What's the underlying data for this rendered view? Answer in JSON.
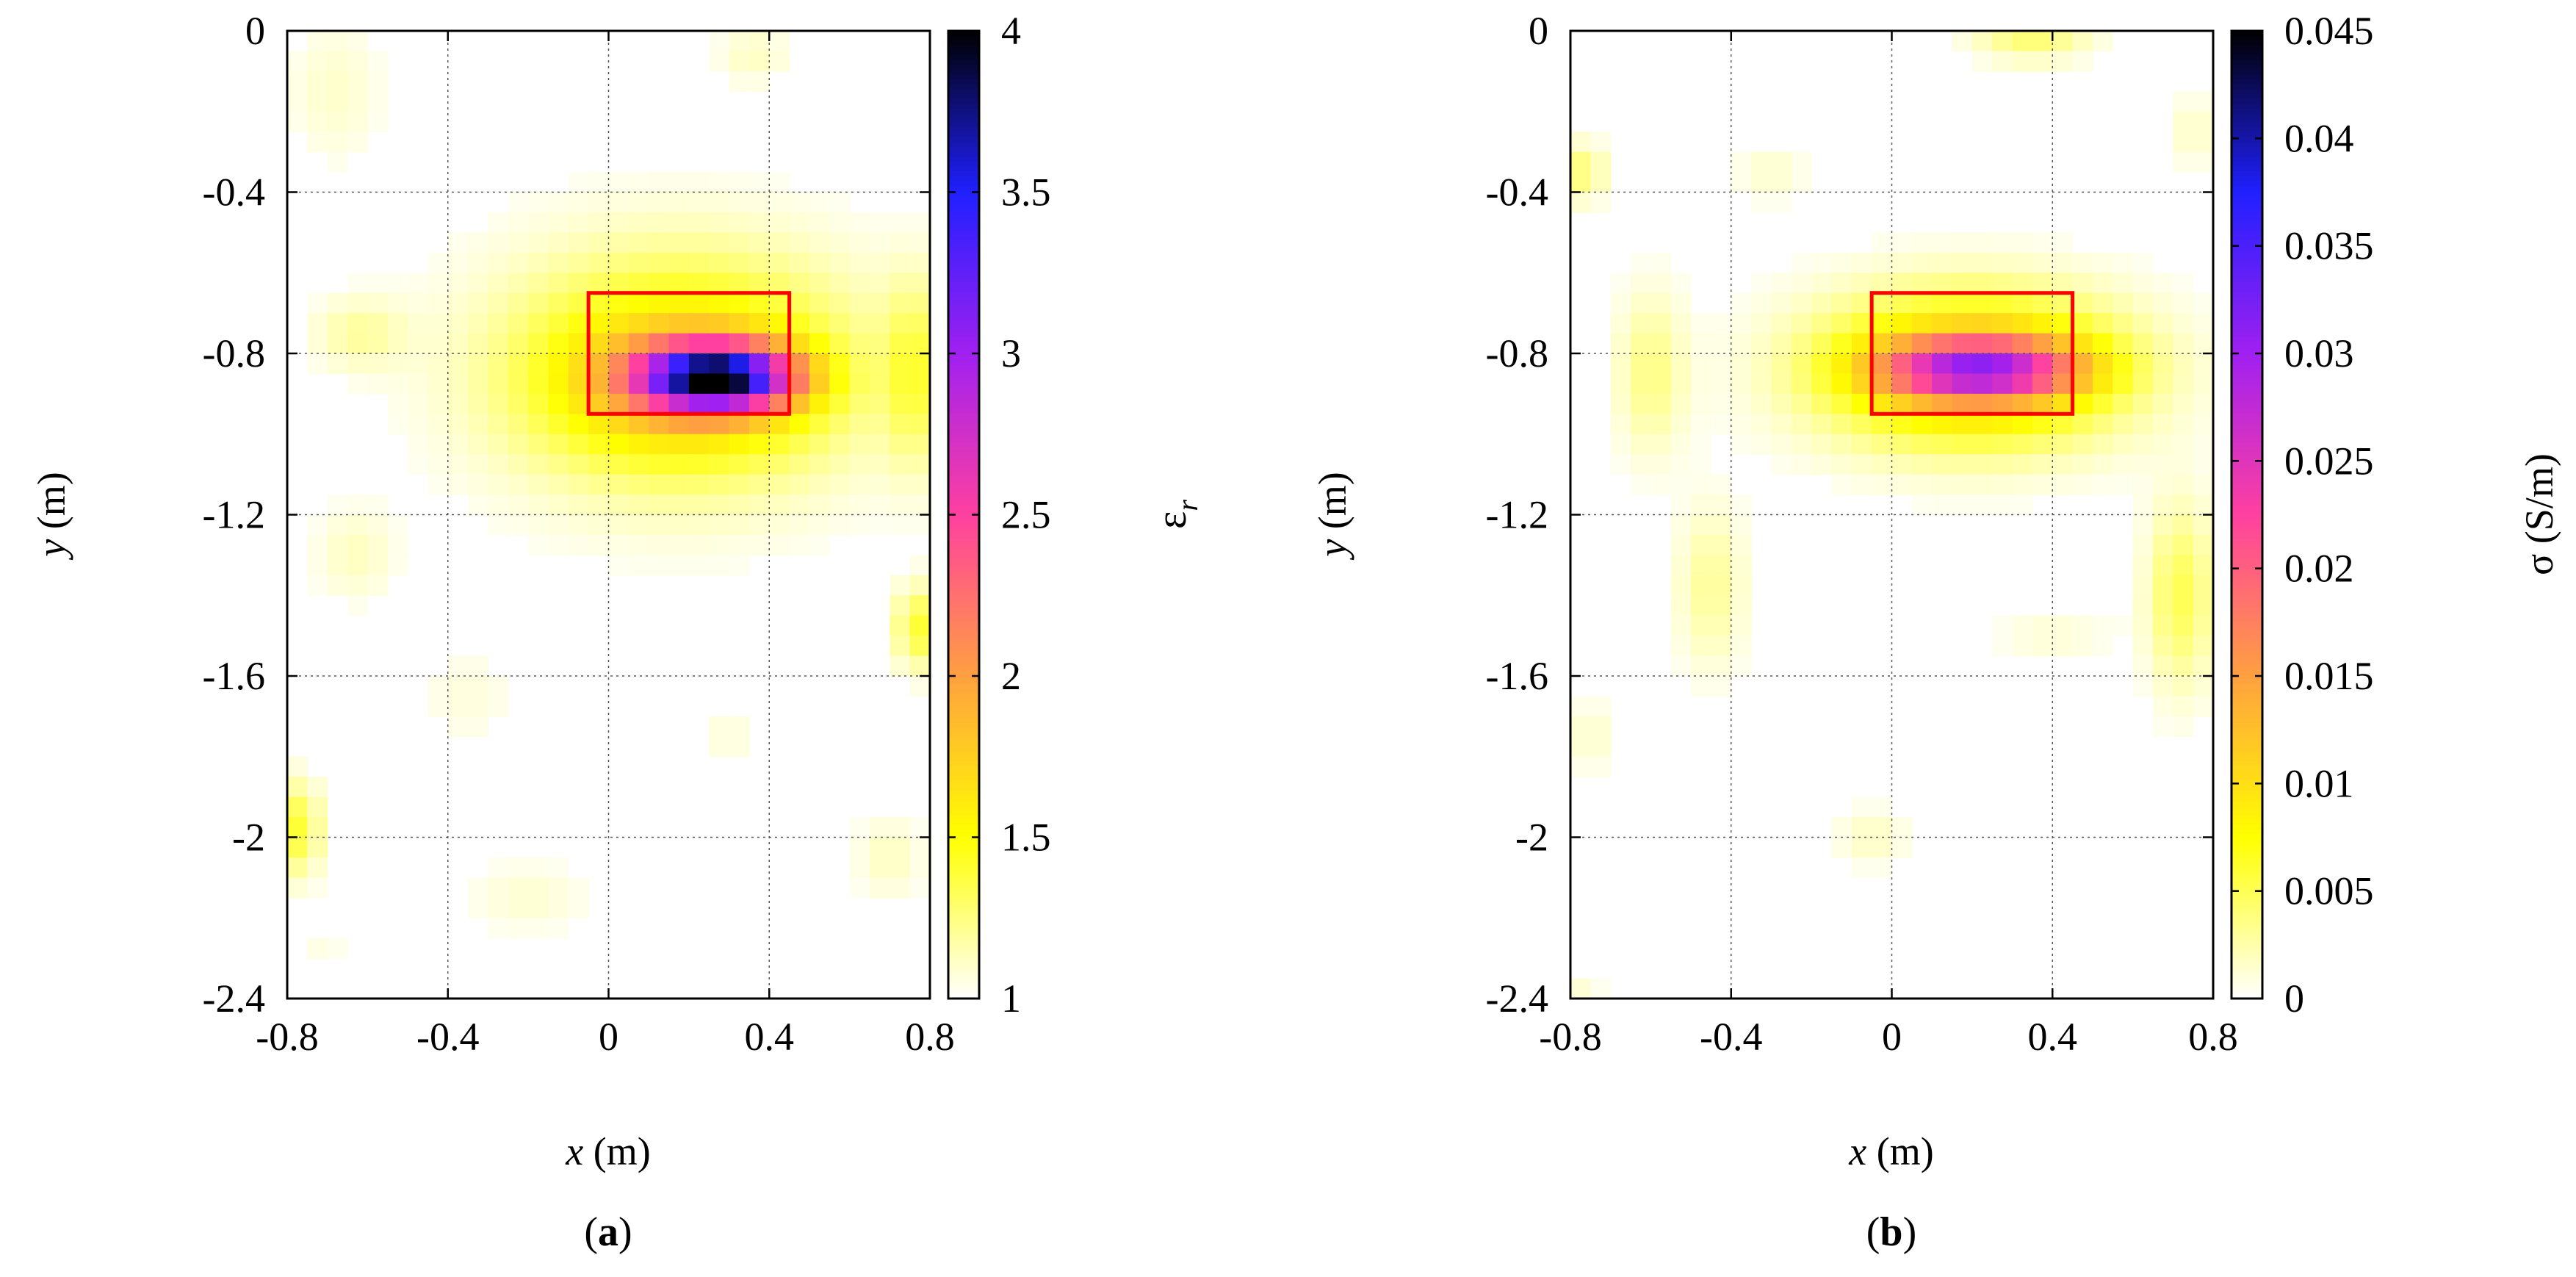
{
  "chart_data": [
    {
      "type": "heatmap",
      "panel_label": "a",
      "xlabel_var": "x",
      "xlabel_unit": " (m)",
      "ylabel_var": "y",
      "ylabel_unit": " (m)",
      "xlim": [
        -0.8,
        0.8
      ],
      "ylim": [
        -2.4,
        0
      ],
      "xticks": [
        -0.8,
        -0.4,
        0,
        0.4,
        0.8
      ],
      "xtick_labels": [
        "-0.8",
        "-0.4",
        "0",
        "0.4",
        "0.8"
      ],
      "yticks": [
        0,
        -0.4,
        -0.8,
        -1.2,
        -1.6,
        -2,
        -2.4
      ],
      "ytick_labels": [
        "0",
        "-0.4",
        "-0.8",
        "-1.2",
        "-1.6",
        "-2",
        "-2.4"
      ],
      "grid": true,
      "colorbar": {
        "range": [
          1,
          4
        ],
        "ticks": [
          1,
          1.5,
          2,
          2.5,
          3,
          3.5,
          4
        ],
        "tick_labels": [
          "1",
          "1.5",
          "2",
          "2.5",
          "3",
          "3.5",
          "4"
        ],
        "label_main": "ε",
        "label_sub": "r"
      },
      "colormap": [
        "#ffffff",
        "#ffff00",
        "#ffa040",
        "#ff40a0",
        "#a020f0",
        "#2020ff",
        "#000000"
      ],
      "target_box": {
        "x": [
          -0.05,
          0.45
        ],
        "y": [
          -0.95,
          -0.65
        ],
        "color": "#ff0000"
      },
      "blobs": [
        {
          "x": 0.27,
          "y": -0.86,
          "sx": 0.13,
          "sy": 0.055,
          "v": 2.3
        },
        {
          "x": 0.18,
          "y": -0.84,
          "sx": 0.3,
          "sy": 0.2,
          "v": 0.65
        },
        {
          "x": 0.18,
          "y": -0.88,
          "sx": 0.22,
          "sy": 0.12,
          "v": 0.35
        },
        {
          "x": -0.62,
          "y": -0.75,
          "sx": 0.08,
          "sy": 0.06,
          "v": 0.18
        },
        {
          "x": -0.68,
          "y": -0.15,
          "sx": 0.08,
          "sy": 0.12,
          "v": 0.1
        },
        {
          "x": 0.36,
          "y": -0.06,
          "sx": 0.06,
          "sy": 0.05,
          "v": 0.12
        },
        {
          "x": 0.76,
          "y": -0.85,
          "sx": 0.05,
          "sy": 0.16,
          "v": 0.32
        },
        {
          "x": 0.77,
          "y": -1.48,
          "sx": 0.04,
          "sy": 0.07,
          "v": 0.4
        },
        {
          "x": -0.78,
          "y": -1.98,
          "sx": 0.045,
          "sy": 0.08,
          "v": 0.4
        },
        {
          "x": -0.63,
          "y": -1.3,
          "sx": 0.07,
          "sy": 0.08,
          "v": 0.12
        },
        {
          "x": -0.35,
          "y": -1.65,
          "sx": 0.08,
          "sy": 0.08,
          "v": 0.07
        },
        {
          "x": -0.2,
          "y": -2.15,
          "sx": 0.1,
          "sy": 0.06,
          "v": 0.09
        },
        {
          "x": 0.3,
          "y": -1.75,
          "sx": 0.06,
          "sy": 0.05,
          "v": 0.07
        },
        {
          "x": 0.7,
          "y": -2.05,
          "sx": 0.06,
          "sy": 0.07,
          "v": 0.12
        },
        {
          "x": -0.72,
          "y": -2.28,
          "sx": 0.05,
          "sy": 0.04,
          "v": 0.05
        }
      ]
    },
    {
      "type": "heatmap",
      "panel_label": "b",
      "xlabel_var": "x",
      "xlabel_unit": " (m)",
      "ylabel_var": "y",
      "ylabel_unit": " (m)",
      "xlim": [
        -0.8,
        0.8
      ],
      "ylim": [
        -2.4,
        0
      ],
      "xticks": [
        -0.8,
        -0.4,
        0,
        0.4,
        0.8
      ],
      "xtick_labels": [
        "-0.8",
        "-0.4",
        "0",
        "0.4",
        "0.8"
      ],
      "yticks": [
        0,
        -0.4,
        -0.8,
        -1.2,
        -1.6,
        -2,
        -2.4
      ],
      "ytick_labels": [
        "0",
        "-0.4",
        "-0.8",
        "-1.2",
        "-1.6",
        "-2",
        "-2.4"
      ],
      "grid": true,
      "colorbar": {
        "range": [
          0,
          0.045
        ],
        "ticks": [
          0,
          0.005,
          0.01,
          0.015,
          0.02,
          0.025,
          0.03,
          0.035,
          0.04,
          0.045
        ],
        "tick_labels": [
          "0",
          "0.005",
          "0.01",
          "0.015",
          "0.02",
          "0.025",
          "0.03",
          "0.035",
          "0.04",
          "0.045"
        ],
        "label_main": "σ (S/m)",
        "label_sub": ""
      },
      "colormap": [
        "#ffffff",
        "#ffff00",
        "#ffa040",
        "#ff40a0",
        "#a020f0",
        "#2020ff",
        "#000000"
      ],
      "target_box": {
        "x": [
          -0.05,
          0.45
        ],
        "y": [
          -0.95,
          -0.65
        ],
        "color": "#ff0000"
      },
      "blobs": [
        {
          "x": 0.22,
          "y": -0.84,
          "sx": 0.17,
          "sy": 0.05,
          "v": 0.018
        },
        {
          "x": 0.2,
          "y": -0.84,
          "sx": 0.26,
          "sy": 0.13,
          "v": 0.014
        },
        {
          "x": -0.6,
          "y": -0.85,
          "sx": 0.06,
          "sy": 0.14,
          "v": 0.0035
        },
        {
          "x": -0.45,
          "y": -1.38,
          "sx": 0.06,
          "sy": 0.14,
          "v": 0.003
        },
        {
          "x": 0.72,
          "y": -1.4,
          "sx": 0.06,
          "sy": 0.16,
          "v": 0.005
        },
        {
          "x": 0.35,
          "y": -0.02,
          "sx": 0.1,
          "sy": 0.04,
          "v": 0.004
        },
        {
          "x": -0.78,
          "y": -0.35,
          "sx": 0.05,
          "sy": 0.05,
          "v": 0.004
        },
        {
          "x": -0.3,
          "y": -0.35,
          "sx": 0.06,
          "sy": 0.05,
          "v": 0.0015
        },
        {
          "x": 0.75,
          "y": -0.25,
          "sx": 0.04,
          "sy": 0.06,
          "v": 0.0018
        },
        {
          "x": -0.75,
          "y": -1.75,
          "sx": 0.05,
          "sy": 0.06,
          "v": 0.0015
        },
        {
          "x": -0.05,
          "y": -2.0,
          "sx": 0.06,
          "sy": 0.05,
          "v": 0.0018
        },
        {
          "x": -0.78,
          "y": -2.38,
          "sx": 0.04,
          "sy": 0.03,
          "v": 0.0012
        },
        {
          "x": 0.4,
          "y": -1.5,
          "sx": 0.1,
          "sy": 0.05,
          "v": 0.0012
        }
      ]
    }
  ]
}
